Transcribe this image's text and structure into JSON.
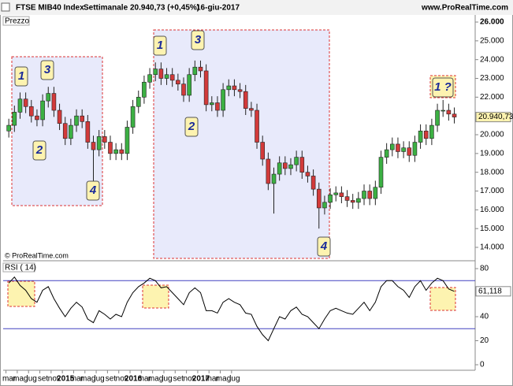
{
  "header": {
    "title": "FTSE MIB40 Index",
    "period": "Settimanale",
    "quote": "20.940,73 (+0,45%)",
    "date": "16-giu-2017",
    "site": "www.ProRealTime.com"
  },
  "copyright": "© ProRealTime.com",
  "chart_data": [
    {
      "type": "candlestick",
      "panel_label": "Prezzo",
      "last_label": "20.940,73",
      "up_color": "#3cb043",
      "down_color": "#d23a3a",
      "xlim": [
        -1,
        82.7
      ],
      "ylim": [
        13329,
        26336
      ],
      "yticks": [
        {
          "value": 14000,
          "label": "14.000"
        },
        {
          "value": 15000,
          "label": "15.000"
        },
        {
          "value": 16000,
          "label": "16.000"
        },
        {
          "value": 17000,
          "label": "17.000"
        },
        {
          "value": 18000,
          "label": "18.000"
        },
        {
          "value": 19000,
          "label": "19.000"
        },
        {
          "value": 20000,
          "label": "20.000"
        },
        {
          "value": 21000,
          "label": "21.000"
        },
        {
          "value": 22000,
          "label": "22.000"
        },
        {
          "value": 23000,
          "label": "23.000"
        },
        {
          "value": 24000,
          "label": "24.000"
        },
        {
          "value": 25000,
          "label": "25.000"
        },
        {
          "value": 26000,
          "label": "26.000"
        }
      ],
      "open": [
        20200,
        20500,
        21200,
        21900,
        21500,
        21000,
        20800,
        21800,
        22200,
        21300,
        20600,
        19800,
        20500,
        21000,
        20700,
        19600,
        19200,
        19900,
        19600,
        19000,
        19200,
        19000,
        20400,
        21500,
        22000,
        22800,
        23200,
        23500,
        23000,
        23200,
        22900,
        22700,
        22100,
        23200,
        23600,
        23400,
        21600,
        21700,
        21300,
        22400,
        22600,
        22400,
        22300,
        21400,
        21300,
        19600,
        18700,
        17400,
        17900,
        18500,
        18200,
        18400,
        18800,
        18000,
        17800,
        17100,
        16100,
        16400,
        16800,
        16900,
        16700,
        16500,
        16400,
        16600,
        17000,
        16600,
        17200,
        18800,
        19200,
        19500,
        19100,
        19300,
        18900,
        19600,
        20200,
        19800,
        20500,
        21300,
        21300,
        21100
      ],
      "high": [
        20850,
        21550,
        22250,
        22250,
        21850,
        21350,
        22150,
        22550,
        22550,
        21650,
        20950,
        20850,
        21350,
        21350,
        21050,
        19950,
        20250,
        20250,
        19950,
        19550,
        19550,
        20750,
        21850,
        22350,
        23150,
        23550,
        23850,
        23850,
        23550,
        23550,
        23250,
        23050,
        23550,
        23950,
        23950,
        23750,
        22050,
        22050,
        22750,
        22950,
        22950,
        22750,
        22650,
        21750,
        21650,
        19950,
        19050,
        18250,
        18850,
        18850,
        18750,
        19150,
        19150,
        18350,
        18150,
        17450,
        16750,
        17150,
        17250,
        17250,
        17050,
        16850,
        16950,
        17350,
        17350,
        17550,
        19150,
        19550,
        19850,
        19850,
        19650,
        19650,
        19950,
        20550,
        20550,
        20850,
        21650,
        21850,
        21650,
        21450
      ],
      "low": [
        19850,
        20150,
        20850,
        21150,
        20650,
        20450,
        20450,
        21450,
        20950,
        20250,
        19450,
        19450,
        20150,
        20350,
        19250,
        17500,
        18850,
        19250,
        18650,
        18650,
        18650,
        18650,
        20050,
        21150,
        21650,
        22450,
        22850,
        22650,
        22650,
        22550,
        22350,
        21750,
        21750,
        22850,
        23050,
        21250,
        21250,
        20950,
        20950,
        22050,
        22050,
        21950,
        21050,
        20950,
        19250,
        18350,
        17050,
        15800,
        17550,
        17850,
        17850,
        18050,
        17650,
        17450,
        16750,
        15000,
        15750,
        16050,
        16450,
        16350,
        16150,
        16050,
        16050,
        16250,
        16250,
        16250,
        16850,
        18450,
        18850,
        18750,
        18750,
        18550,
        18550,
        19250,
        19450,
        19450,
        20150,
        20950,
        20750,
        20600
      ],
      "close": [
        20500,
        21200,
        21900,
        21500,
        21000,
        20800,
        21800,
        22200,
        21300,
        20600,
        19800,
        20500,
        21000,
        20700,
        19600,
        19200,
        19900,
        19600,
        19000,
        19200,
        19000,
        20400,
        21500,
        22000,
        22800,
        23200,
        23500,
        23000,
        23200,
        22900,
        22700,
        22100,
        23200,
        23600,
        23400,
        21600,
        21700,
        21300,
        22400,
        22600,
        22400,
        22300,
        21400,
        21300,
        19600,
        18700,
        17400,
        17900,
        18500,
        18200,
        18400,
        18800,
        18000,
        17800,
        17100,
        16100,
        16400,
        16800,
        16900,
        16700,
        16500,
        16400,
        16600,
        17000,
        16600,
        17200,
        18800,
        19200,
        19500,
        19100,
        19300,
        18900,
        19600,
        20200,
        19800,
        20500,
        21300,
        21300,
        21100,
        20940.73
      ],
      "annotations": [
        "1",
        "3",
        "2",
        "4",
        "1",
        "3",
        "2",
        "4",
        "1 ?"
      ]
    },
    {
      "type": "line",
      "panel_label": "RSI ( 14)",
      "last_label": "61,118",
      "color": "#000000",
      "level_color": "#4040c0",
      "levels": [
        70,
        30
      ],
      "xlim": [
        -1,
        82.7
      ],
      "ylim": [
        -4.6,
        84.6
      ],
      "yticks": [
        0,
        20,
        40,
        60,
        80
      ],
      "values": [
        68,
        73,
        66,
        62,
        55,
        52,
        62,
        65,
        55,
        47,
        40,
        47,
        52,
        48,
        38,
        35,
        45,
        42,
        38,
        42,
        40,
        52,
        60,
        65,
        68,
        72,
        70,
        64,
        65,
        60,
        55,
        50,
        60,
        64,
        60,
        45,
        45,
        43,
        52,
        55,
        52,
        50,
        43,
        42,
        32,
        25,
        20,
        30,
        40,
        38,
        45,
        48,
        42,
        40,
        35,
        30,
        38,
        45,
        47,
        45,
        43,
        42,
        47,
        52,
        45,
        52,
        65,
        70,
        70,
        65,
        62,
        56,
        65,
        70,
        62,
        68,
        72,
        70,
        63,
        61.118
      ],
      "xticks": [
        {
          "value": -0.5,
          "label": "mar"
        },
        {
          "value": 1.5,
          "label": "mag"
        },
        {
          "value": 3.5,
          "label": "lug"
        },
        {
          "value": 5.5,
          "label": "set"
        },
        {
          "value": 7.5,
          "label": "nov"
        },
        {
          "value": 9.5,
          "label": "2015"
        },
        {
          "value": 11.5,
          "label": "mar"
        },
        {
          "value": 13.5,
          "label": "mag"
        },
        {
          "value": 15.5,
          "label": "lug"
        },
        {
          "value": 17.5,
          "label": "set"
        },
        {
          "value": 19.5,
          "label": "nov"
        },
        {
          "value": 21.5,
          "label": "2016"
        },
        {
          "value": 23.5,
          "label": "mar"
        },
        {
          "value": 25.5,
          "label": "mag"
        },
        {
          "value": 27.5,
          "label": "lug"
        },
        {
          "value": 29.5,
          "label": "set"
        },
        {
          "value": 31.5,
          "label": "nov"
        },
        {
          "value": 33.5,
          "label": "2017"
        },
        {
          "value": 35.5,
          "label": "mar"
        },
        {
          "value": 37.5,
          "label": "mag"
        },
        {
          "value": 39.5,
          "label": "lug"
        }
      ]
    }
  ]
}
